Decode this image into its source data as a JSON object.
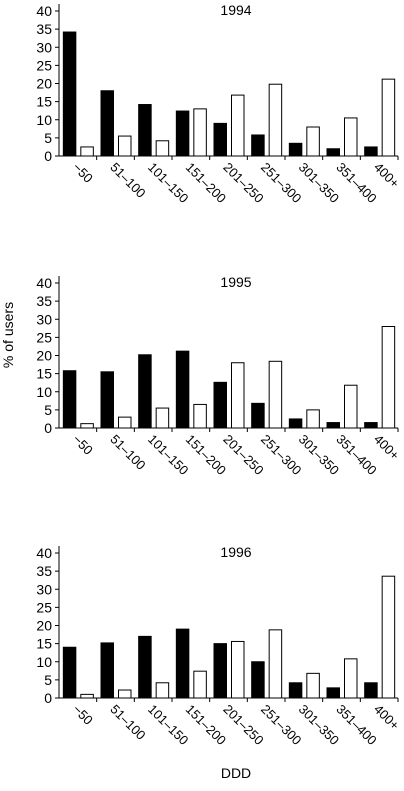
{
  "ylabel": "% of users",
  "xlabel": "DDD",
  "chart_data": [
    {
      "type": "bar",
      "title": "1994",
      "categories": [
        "−50",
        "51–100",
        "101–150",
        "151–200",
        "201–250",
        "251–300",
        "301–350",
        "351–400",
        "400+"
      ],
      "ylim": [
        0,
        40
      ],
      "yticks": [
        0,
        5,
        10,
        15,
        20,
        25,
        30,
        35,
        40
      ],
      "series": [
        {
          "color": "#000000",
          "values": [
            34.2,
            18,
            14.2,
            12.4,
            9,
            5.8,
            3.5,
            2,
            2.5
          ]
        },
        {
          "color": "#ffffff",
          "values": [
            2.5,
            5.5,
            4.2,
            13,
            16.8,
            19.8,
            8,
            10.5,
            21.2
          ]
        }
      ]
    },
    {
      "type": "bar",
      "title": "1995",
      "categories": [
        "−50",
        "51–100",
        "101–150",
        "151–200",
        "201–250",
        "251–300",
        "301–350",
        "351–400",
        "400+"
      ],
      "ylim": [
        0,
        40
      ],
      "yticks": [
        0,
        5,
        10,
        15,
        20,
        25,
        30,
        35,
        40
      ],
      "series": [
        {
          "color": "#000000",
          "values": [
            15.8,
            15.5,
            20.2,
            21.2,
            12.6,
            6.8,
            2.5,
            1.5,
            1.5
          ]
        },
        {
          "color": "#ffffff",
          "values": [
            1.2,
            3,
            5.5,
            6.5,
            18,
            18.4,
            5,
            11.8,
            28
          ]
        }
      ]
    },
    {
      "type": "bar",
      "title": "1996",
      "categories": [
        "−50",
        "51–100",
        "101–150",
        "151–200",
        "201–250",
        "251–300",
        "301–350",
        "351–400",
        "400+"
      ],
      "ylim": [
        0,
        40
      ],
      "yticks": [
        0,
        5,
        10,
        15,
        20,
        25,
        30,
        35,
        40
      ],
      "series": [
        {
          "color": "#000000",
          "values": [
            14,
            15.2,
            17,
            19,
            15,
            10,
            4.2,
            2.8,
            4.2
          ]
        },
        {
          "color": "#ffffff",
          "values": [
            1,
            2.2,
            4.2,
            7.4,
            15.6,
            18.8,
            6.8,
            10.8,
            33.6
          ]
        }
      ]
    }
  ]
}
